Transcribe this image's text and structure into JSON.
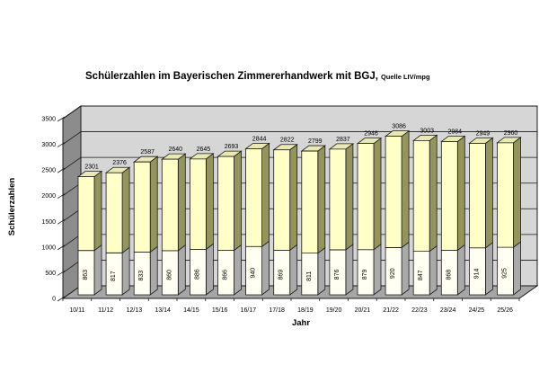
{
  "title": {
    "main": "Schülerzahlen im Bayerischen Zimmererhandwerk mit BGJ,",
    "source": "Quelle LIV/mpg"
  },
  "chart_data": {
    "type": "bar",
    "variant": "3d-stacked-column",
    "title": "Schülerzahlen im Bayerischen Zimmererhandwerk mit BGJ, Quelle LIV/mpg",
    "xlabel": "Jahr",
    "ylabel": "Schülerzahlen",
    "ylim": [
      0,
      3500
    ],
    "ytick_step": 500,
    "ytick_labels": [
      "0",
      "500",
      "1000",
      "1500",
      "2000",
      "2500",
      "3000",
      "3500"
    ],
    "grid": true,
    "legend": "none",
    "categories": [
      "10/11",
      "11/12",
      "12/13",
      "13/14",
      "14/15",
      "15/16",
      "16/17",
      "17/18",
      "18/19",
      "19/20",
      "20/21",
      "21/22",
      "22/23",
      "23/24",
      "24/25",
      "25/26"
    ],
    "totals": [
      2301,
      2376,
      2587,
      2640,
      2645,
      2693,
      2844,
      2822,
      2799,
      2837,
      2946,
      3086,
      3003,
      2984,
      2949,
      2960
    ],
    "lower_values": [
      863,
      817,
      833,
      860,
      886,
      866,
      940,
      869,
      811,
      876,
      879,
      920,
      847,
      868,
      914,
      925
    ],
    "colors": {
      "upper_front": "#FFFFC8",
      "upper_side": "#94945E",
      "upper_top": "#E9E9B4",
      "lower_front": "#FFFFF2",
      "lower_side": "#A9A9A9",
      "back_wall": "#D6D6D6",
      "left_wall": "#8C8C8C",
      "floor": "#A6A6A6",
      "outline": "#1a1a1a",
      "label": "#000000"
    }
  }
}
